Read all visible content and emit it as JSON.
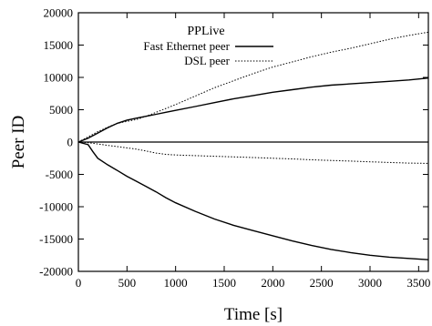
{
  "chart_data": {
    "type": "line",
    "xlabel": "Time [s]",
    "ylabel": "Peer ID",
    "xlim": [
      0,
      3600
    ],
    "ylim": [
      -20000,
      20000
    ],
    "x_ticks": [
      0,
      500,
      1000,
      1500,
      2000,
      2500,
      3000,
      3500
    ],
    "y_ticks": [
      -20000,
      -15000,
      -10000,
      -5000,
      0,
      5000,
      10000,
      15000,
      20000
    ],
    "grid": false,
    "legend": {
      "title": "PPLive",
      "position": "top-center",
      "entries": [
        {
          "label": "Fast Ethernet peer",
          "style": "solid"
        },
        {
          "label": "DSL peer",
          "style": "dotted"
        }
      ]
    },
    "series": [
      {
        "name": "Fast Ethernet peer",
        "style": "solid",
        "x": [
          0,
          100,
          200,
          300,
          400,
          500,
          600,
          700,
          800,
          900,
          1000,
          1200,
          1400,
          1600,
          1800,
          2000,
          2200,
          2400,
          2600,
          2800,
          3000,
          3200,
          3400,
          3600
        ],
        "y": [
          0,
          600,
          1400,
          2200,
          2900,
          3400,
          3700,
          4000,
          4300,
          4600,
          4900,
          5500,
          6100,
          6700,
          7200,
          7700,
          8100,
          8500,
          8800,
          9000,
          9200,
          9400,
          9600,
          9900
        ]
      },
      {
        "name": "DSL peer",
        "style": "dotted",
        "x": [
          0,
          100,
          200,
          300,
          400,
          500,
          600,
          700,
          800,
          900,
          1000,
          1200,
          1400,
          1600,
          1800,
          2000,
          2200,
          2400,
          2600,
          2800,
          3000,
          3200,
          3400,
          3600
        ],
        "y": [
          0,
          800,
          1600,
          2300,
          2900,
          3200,
          3500,
          4000,
          4600,
          5200,
          5800,
          7100,
          8400,
          9500,
          10600,
          11600,
          12400,
          13200,
          13900,
          14500,
          15200,
          15900,
          16500,
          17000
        ]
      },
      {
        "name": "Fast Ethernet peer",
        "style": "solid",
        "x": [
          0,
          100,
          150,
          200,
          300,
          400,
          500,
          600,
          700,
          800,
          900,
          1000,
          1200,
          1400,
          1600,
          1800,
          2000,
          2200,
          2400,
          2600,
          2800,
          3000,
          3200,
          3400,
          3600
        ],
        "y": [
          0,
          -400,
          -1500,
          -2500,
          -3500,
          -4400,
          -5300,
          -6100,
          -6900,
          -7700,
          -8600,
          -9400,
          -10700,
          -11900,
          -12900,
          -13700,
          -14500,
          -15300,
          -16000,
          -16600,
          -17100,
          -17500,
          -17800,
          -18000,
          -18200
        ]
      },
      {
        "name": "DSL peer",
        "style": "dotted",
        "x": [
          0,
          100,
          200,
          300,
          400,
          500,
          600,
          700,
          800,
          900,
          1000,
          1200,
          1400,
          1600,
          1800,
          2000,
          2200,
          2400,
          2600,
          2800,
          3000,
          3200,
          3400,
          3600
        ],
        "y": [
          0,
          -100,
          -300,
          -500,
          -700,
          -900,
          -1100,
          -1400,
          -1700,
          -1900,
          -2000,
          -2100,
          -2200,
          -2300,
          -2400,
          -2500,
          -2600,
          -2750,
          -2850,
          -2950,
          -3050,
          -3150,
          -3250,
          -3300
        ]
      }
    ]
  }
}
